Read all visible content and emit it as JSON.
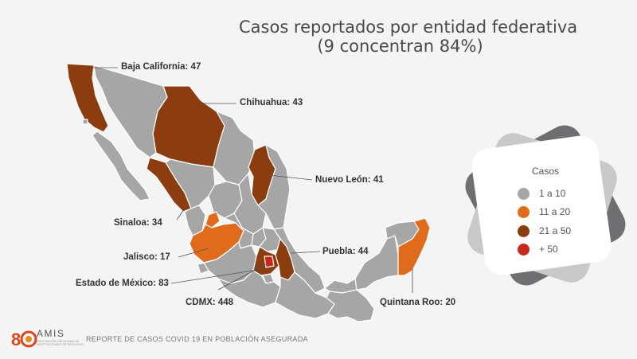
{
  "title": {
    "line1": "Casos reportados por entidad federativa",
    "line2": "(9 concentran 84%)"
  },
  "colors": {
    "bin1": "#a6a6a6",
    "bin2": "#e06b1d",
    "bin3": "#8b3d10",
    "bin4": "#c8281b",
    "background": "#f4f4f4",
    "state_border": "#ffffff"
  },
  "legend": {
    "title": "Casos",
    "items": [
      {
        "label": "1 a 10",
        "color": "#a6a6a6"
      },
      {
        "label": "11 a 20",
        "color": "#e06b1d"
      },
      {
        "label": "21 a 50",
        "color": "#8b3d10"
      },
      {
        "label": "+ 50",
        "color": "#c8281b"
      }
    ]
  },
  "callouts": [
    {
      "state": "Baja California",
      "text": "Baja California: 47"
    },
    {
      "state": "Chihuahua",
      "text": "Chihuahua: 43"
    },
    {
      "state": "Nuevo León",
      "text": "Nuevo León: 41"
    },
    {
      "state": "Sinaloa",
      "text": "Sinaloa: 34"
    },
    {
      "state": "Jalisco",
      "text": "Jalisco: 17"
    },
    {
      "state": "Puebla",
      "text": "Puebla: 44"
    },
    {
      "state": "Estado de México",
      "text": "Estado de México: 83"
    },
    {
      "state": "CDMX",
      "text": "CDMX: 448"
    },
    {
      "state": "Quintana Roo",
      "text": "Quintana Roo: 20"
    }
  ],
  "footer": {
    "logo_name": "AMIS",
    "logo_sub": "ASOCIACIÓN MEXICANA DE INSTITUCIONES DE SEGUROS",
    "text": "REPORTE DE CASOS COVID 19 EN POBLACIÓN ASEGURADA"
  }
}
